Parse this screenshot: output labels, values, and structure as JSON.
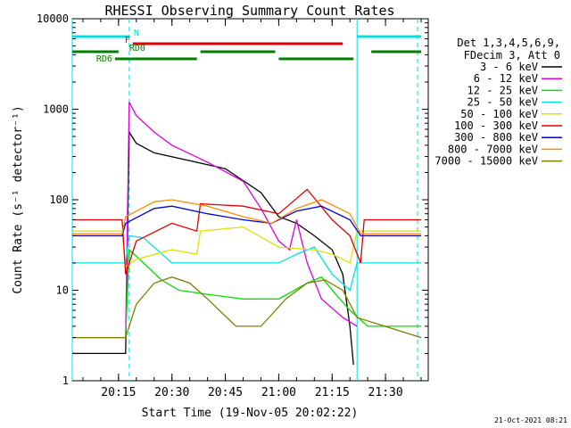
{
  "chart_data": {
    "type": "line",
    "title": "RHESSI Observing Summary Count Rates",
    "xlabel": "Start Time (19-Nov-05 20:02:22)",
    "ylabel": "Count Rate (s⁻¹ detector⁻¹)",
    "y_scale": "log",
    "ylim": [
      1,
      10000
    ],
    "y_ticks": [
      {
        "v": 1,
        "label": "1"
      },
      {
        "v": 10,
        "label": "10"
      },
      {
        "v": 100,
        "label": "100"
      },
      {
        "v": 1000,
        "label": "1000"
      },
      {
        "v": 10000,
        "label": "10000"
      }
    ],
    "xlim": [
      "20:02",
      "21:42"
    ],
    "x_ticks": [
      "20:15",
      "20:30",
      "20:45",
      "21:00",
      "21:15",
      "21:30"
    ],
    "legend": {
      "placement": "right",
      "header": [
        "Det 1,3,4,5,6,9,",
        "FDecim 3, Att 0"
      ]
    },
    "timestamp": "21-Oct-2021 08:21",
    "series": [
      {
        "name": "3 - 6 keV",
        "color": "#000000",
        "points": [
          [
            "20:02",
            2
          ],
          [
            "20:17",
            2
          ],
          [
            "20:18",
            560
          ],
          [
            "20:20",
            420
          ],
          [
            "20:25",
            330
          ],
          [
            "20:35",
            270
          ],
          [
            "20:45",
            220
          ],
          [
            "20:55",
            120
          ],
          [
            "21:00",
            65
          ],
          [
            "21:05",
            55
          ],
          [
            "21:10",
            40
          ],
          [
            "21:15",
            28
          ],
          [
            "21:18",
            15
          ],
          [
            "21:20",
            4
          ],
          [
            "21:21",
            1.5
          ]
        ]
      },
      {
        "name": "6 - 12 keV",
        "color": "#e000e0",
        "points": [
          [
            "20:17",
            3
          ],
          [
            "20:18",
            1200
          ],
          [
            "20:20",
            850
          ],
          [
            "20:25",
            560
          ],
          [
            "20:30",
            400
          ],
          [
            "20:40",
            260
          ],
          [
            "20:50",
            160
          ],
          [
            "20:55",
            80
          ],
          [
            "21:00",
            35
          ],
          [
            "21:03",
            28
          ],
          [
            "21:05",
            60
          ],
          [
            "21:08",
            20
          ],
          [
            "21:12",
            8
          ],
          [
            "21:18",
            5
          ],
          [
            "21:22",
            4
          ]
        ]
      },
      {
        "name": "12 - 25 keV",
        "color": "#00e000",
        "points": [
          [
            "20:02",
            3
          ],
          [
            "20:17",
            3
          ],
          [
            "20:18",
            28
          ],
          [
            "20:22",
            20
          ],
          [
            "20:27",
            13
          ],
          [
            "20:32",
            10
          ],
          [
            "20:40",
            9
          ],
          [
            "20:50",
            8
          ],
          [
            "21:00",
            8
          ],
          [
            "21:08",
            12
          ],
          [
            "21:12",
            14
          ],
          [
            "21:16",
            9
          ],
          [
            "21:20",
            6
          ],
          [
            "21:25",
            4
          ],
          [
            "21:40",
            4
          ]
        ]
      },
      {
        "name": "25 - 50 keV",
        "color": "#00e0e0",
        "points": [
          [
            "20:02",
            20
          ],
          [
            "20:17",
            20
          ],
          [
            "20:18",
            40
          ],
          [
            "20:22",
            38
          ],
          [
            "20:30",
            20
          ],
          [
            "20:40",
            20
          ],
          [
            "20:50",
            20
          ],
          [
            "21:00",
            20
          ],
          [
            "21:05",
            25
          ],
          [
            "21:10",
            30
          ],
          [
            "21:15",
            15
          ],
          [
            "21:20",
            10
          ],
          [
            "21:22",
            20
          ],
          [
            "21:40",
            20
          ]
        ]
      },
      {
        "name": "50 - 100 keV",
        "color": "#e0e000",
        "points": [
          [
            "20:02",
            45
          ],
          [
            "20:16",
            45
          ],
          [
            "20:17",
            18
          ],
          [
            "20:20",
            22
          ],
          [
            "20:30",
            28
          ],
          [
            "20:37",
            25
          ],
          [
            "20:38",
            45
          ],
          [
            "20:50",
            50
          ],
          [
            "21:00",
            30
          ],
          [
            "21:10",
            28
          ],
          [
            "21:15",
            25
          ],
          [
            "21:20",
            20
          ],
          [
            "21:22",
            45
          ],
          [
            "21:40",
            45
          ]
        ]
      },
      {
        "name": "100 - 300 keV",
        "color": "#e00000",
        "points": [
          [
            "20:02",
            60
          ],
          [
            "20:16",
            60
          ],
          [
            "20:17",
            15
          ],
          [
            "20:20",
            35
          ],
          [
            "20:30",
            55
          ],
          [
            "20:37",
            45
          ],
          [
            "20:38",
            90
          ],
          [
            "20:50",
            85
          ],
          [
            "21:00",
            70
          ],
          [
            "21:08",
            130
          ],
          [
            "21:15",
            60
          ],
          [
            "21:20",
            40
          ],
          [
            "21:23",
            20
          ],
          [
            "21:24",
            60
          ],
          [
            "21:40",
            60
          ]
        ]
      },
      {
        "name": "300 - 800 keV",
        "color": "#0000e0",
        "points": [
          [
            "20:02",
            40
          ],
          [
            "20:16",
            40
          ],
          [
            "20:17",
            55
          ],
          [
            "20:25",
            80
          ],
          [
            "20:30",
            85
          ],
          [
            "20:40",
            70
          ],
          [
            "20:50",
            60
          ],
          [
            "20:58",
            55
          ],
          [
            "21:05",
            75
          ],
          [
            "21:12",
            85
          ],
          [
            "21:20",
            60
          ],
          [
            "21:23",
            40
          ],
          [
            "21:40",
            40
          ]
        ]
      },
      {
        "name": "800 - 7000 keV",
        "color": "#ff8c00",
        "points": [
          [
            "20:02",
            42
          ],
          [
            "20:16",
            42
          ],
          [
            "20:17",
            65
          ],
          [
            "20:25",
            95
          ],
          [
            "20:30",
            100
          ],
          [
            "20:40",
            85
          ],
          [
            "20:50",
            65
          ],
          [
            "20:58",
            55
          ],
          [
            "21:05",
            80
          ],
          [
            "21:12",
            100
          ],
          [
            "21:20",
            70
          ],
          [
            "21:23",
            42
          ],
          [
            "21:40",
            42
          ]
        ]
      },
      {
        "name": "7000 - 15000 keV",
        "color": "#808000",
        "points": [
          [
            "20:02",
            3
          ],
          [
            "20:17",
            3
          ],
          [
            "20:20",
            7
          ],
          [
            "20:25",
            12
          ],
          [
            "20:30",
            14
          ],
          [
            "20:35",
            12
          ],
          [
            "20:40",
            8
          ],
          [
            "20:48",
            4
          ],
          [
            "20:55",
            4
          ],
          [
            "21:02",
            8
          ],
          [
            "21:08",
            12
          ],
          [
            "21:13",
            13
          ],
          [
            "21:18",
            10
          ],
          [
            "21:22",
            5
          ],
          [
            "21:40",
            3
          ]
        ]
      }
    ],
    "annotations": {
      "N": {
        "label": "N",
        "color": "#00e0e0",
        "segments": [
          [
            "20:02",
            "20:18"
          ],
          [
            "21:22",
            "21:40"
          ]
        ]
      },
      "F": {
        "label": "F",
        "color": "#e00000",
        "segments": [
          [
            "20:19",
            "21:18"
          ]
        ]
      },
      "RD0": {
        "label": "RD0",
        "color": "#008000",
        "segments": [
          [
            "20:02",
            "20:15"
          ],
          [
            "20:38",
            "20:59"
          ],
          [
            "21:26",
            "21:40"
          ]
        ]
      },
      "RD6": {
        "label": "RD6",
        "color": "#008000",
        "segments": [
          [
            "20:14",
            "20:37"
          ],
          [
            "21:00",
            "21:21"
          ]
        ]
      }
    },
    "vlines": [
      {
        "time": "20:18",
        "color": "#00e0e0",
        "style": "dashed"
      },
      {
        "time": "21:39",
        "color": "#00e0e0",
        "style": "dashed"
      },
      {
        "time": "20:02",
        "color": "#00e0e0",
        "style": "solid"
      },
      {
        "time": "21:22",
        "color": "#00e0e0",
        "style": "solid"
      }
    ]
  }
}
